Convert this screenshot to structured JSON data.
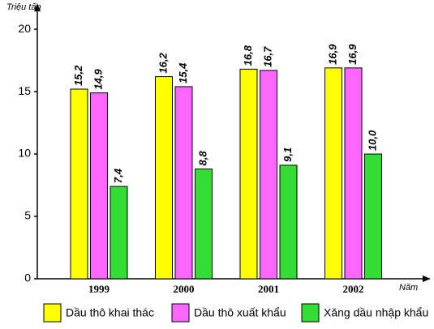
{
  "chart_data": {
    "type": "bar",
    "y_label": "Triệu tấn",
    "x_label": "Năm",
    "categories": [
      "1999",
      "2000",
      "2001",
      "2002"
    ],
    "series": [
      {
        "name": "Dầu thô khai thác",
        "color": "#ffff00",
        "values": [
          15.2,
          16.2,
          16.8,
          16.9
        ],
        "value_labels": [
          "15,2",
          "16,2",
          "16,8",
          "16,9"
        ]
      },
      {
        "name": "Dầu thô xuất khẩu",
        "color": "#ff66ff",
        "values": [
          14.9,
          15.4,
          16.7,
          16.9
        ],
        "value_labels": [
          "14,9",
          "15,4",
          "16,7",
          "16,9"
        ]
      },
      {
        "name": "Xăng dầu nhập khẩu",
        "color": "#33dd33",
        "values": [
          7.4,
          8.8,
          9.1,
          10.0
        ],
        "value_labels": [
          "7,4",
          "8,8",
          "9,1",
          "10,0"
        ]
      }
    ],
    "ylim": [
      0,
      21.5
    ],
    "yticks": [
      0,
      5,
      10,
      15,
      20
    ],
    "grid": false
  }
}
